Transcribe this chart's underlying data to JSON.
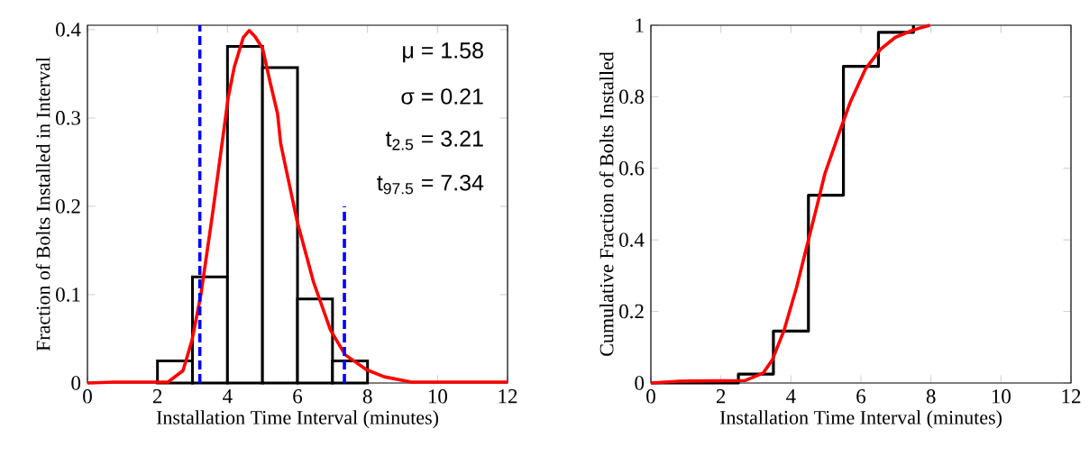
{
  "chart_data": [
    {
      "type": "histogram",
      "xlabel": "Installation Time Interval (minutes)",
      "ylabel": "Fraction of Bolts Installed in Interval",
      "xlim": [
        0,
        12
      ],
      "ylim": [
        0,
        0.405
      ],
      "xticks": [
        0,
        2,
        4,
        6,
        8,
        10,
        12
      ],
      "yticks": [
        0,
        0.1,
        0.2,
        0.3,
        0.4
      ],
      "series": [
        {
          "color": "#000000",
          "bins": [
            2,
            3,
            4,
            5,
            6,
            7,
            8
          ],
          "values": [
            0.025,
            0.12,
            0.381,
            0.357,
            0.095,
            0.025
          ]
        },
        {
          "type": "line",
          "color": "#ff0000",
          "x": [
            0,
            0.76,
            2.3,
            2.73,
            2.99,
            3.24,
            3.59,
            4.02,
            4.19,
            4.45,
            4.62,
            4.79,
            5.0,
            5.22,
            5.43,
            5.52,
            5.99,
            6.46,
            6.94,
            7.36,
            7.97,
            8.48,
            9.25,
            12
          ],
          "values": [
            0,
            0.001,
            0.001,
            0.014,
            0.049,
            0.1,
            0.196,
            0.323,
            0.357,
            0.391,
            0.399,
            0.392,
            0.379,
            0.34,
            0.305,
            0.271,
            0.183,
            0.114,
            0.06,
            0.032,
            0.015,
            0.007,
            0.001,
            0.001
          ]
        },
        {
          "type": "line",
          "color": "#0000ff",
          "line_style": "dashed",
          "x": [
            3.21,
            3.21
          ],
          "values": [
            0,
            0.405
          ]
        },
        {
          "type": "line",
          "color": "#0000ff",
          "line_style": "dashed",
          "x": [
            7.34,
            7.34
          ],
          "values": [
            0,
            0.2
          ]
        }
      ],
      "annotations": [
        "μ =   1.58",
        "σ =   0.21",
        "t$_{2.5}$ =   3.21",
        "t$_{97.5}$ =   7.34"
      ]
    },
    {
      "type": "step",
      "xlabel": "Installation Time Interval (minutes)",
      "ylabel": "Cumulative Fraction of Bolts Installed",
      "xlim": [
        0,
        12
      ],
      "ylim": [
        0,
        1
      ],
      "xticks": [
        0,
        2,
        4,
        6,
        8,
        10,
        12
      ],
      "yticks": [
        0,
        0.2,
        0.4,
        0.6,
        0.8,
        1
      ],
      "series": [
        {
          "color": "#000000",
          "x": [
            0,
            2.5,
            3.5,
            4.5,
            5.5,
            6.5,
            7.5
          ],
          "values": [
            0,
            0.025,
            0.145,
            0.525,
            0.885,
            0.98,
            1.0
          ]
        },
        {
          "type": "line",
          "color": "#ff0000",
          "x": [
            0,
            0.81,
            2.7,
            3.21,
            3.47,
            3.81,
            4.16,
            4.5,
            4.76,
            4.97,
            5.36,
            5.7,
            6.13,
            6.56,
            6.98,
            7.5,
            7.97
          ],
          "values": [
            0,
            0.005,
            0.007,
            0.028,
            0.065,
            0.149,
            0.267,
            0.4,
            0.501,
            0.585,
            0.694,
            0.786,
            0.878,
            0.933,
            0.966,
            0.987,
            1.0
          ]
        }
      ]
    }
  ]
}
